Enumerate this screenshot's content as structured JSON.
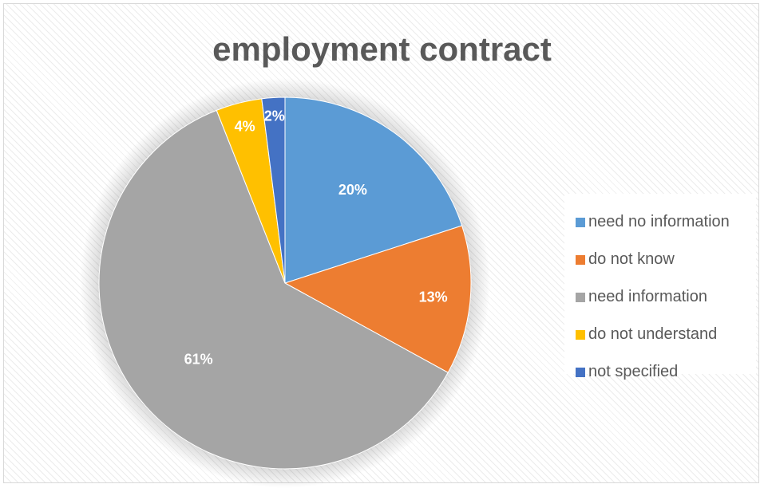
{
  "chart_data": {
    "type": "pie",
    "title": "employment contract",
    "slices": [
      {
        "label": "need no information",
        "value": 20,
        "display": "20%",
        "color": "#5b9bd5"
      },
      {
        "label": "do not know",
        "value": 13,
        "display": "13%",
        "color": "#ed7d31"
      },
      {
        "label": "need information",
        "value": 61,
        "display": "61%",
        "color": "#a5a5a5"
      },
      {
        "label": "do not understand",
        "value": 4,
        "display": "4%",
        "color": "#ffc000"
      },
      {
        "label": "not specified",
        "value": 2,
        "display": "2%",
        "color": "#4472c4"
      }
    ],
    "legend_position": "right",
    "start": "top, clockwise"
  }
}
